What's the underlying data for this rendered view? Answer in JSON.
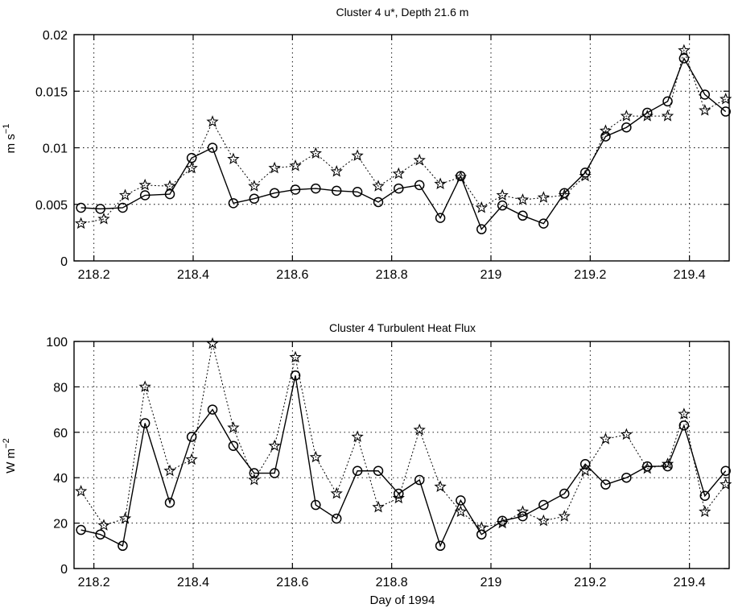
{
  "chart_data": [
    {
      "type": "line",
      "title": "Cluster 4 u*, Depth 21.6 m",
      "xlabel": "",
      "ylabel": "m s^-1",
      "xlim": [
        218.16,
        219.48
      ],
      "ylim": [
        0,
        0.02
      ],
      "xticks": [
        "218.2",
        "218.4",
        "218.6",
        "218.8",
        "219",
        "219.2",
        "219.4"
      ],
      "xtick_values": [
        218.2,
        218.4,
        218.6,
        218.8,
        219.0,
        219.2,
        219.4
      ],
      "yticks": [
        "0",
        "0.005",
        "0.01",
        "0.015",
        "0.02"
      ],
      "ytick_values": [
        0,
        0.005,
        0.01,
        0.015,
        0.02
      ],
      "grid": true,
      "series": [
        {
          "marker": "circle",
          "line_style": "solid",
          "x": [
            218.174,
            218.213,
            218.258,
            218.303,
            218.353,
            218.397,
            218.439,
            218.481,
            218.523,
            218.564,
            218.606,
            218.647,
            218.689,
            218.731,
            218.773,
            218.814,
            218.856,
            218.898,
            218.939,
            218.981,
            219.023,
            219.064,
            219.106,
            219.148,
            219.19,
            219.231,
            219.273,
            219.315,
            219.356,
            219.389,
            219.431,
            219.473
          ],
          "values": [
            0.0047,
            0.0046,
            0.0047,
            0.0058,
            0.0059,
            0.0091,
            0.01,
            0.0051,
            0.0055,
            0.006,
            0.0063,
            0.0064,
            0.0062,
            0.0061,
            0.0052,
            0.0064,
            0.0067,
            0.0038,
            0.0075,
            0.0028,
            0.0049,
            0.004,
            0.0033,
            0.006,
            0.0078,
            0.011,
            0.0118,
            0.0131,
            0.0141,
            0.0179,
            0.0147,
            0.0132
          ]
        },
        {
          "marker": "star",
          "line_style": "dotted",
          "x": [
            218.174,
            218.22,
            218.263,
            218.303,
            218.353,
            218.397,
            218.439,
            218.481,
            218.523,
            218.564,
            218.606,
            218.647,
            218.689,
            218.731,
            218.773,
            218.814,
            218.856,
            218.898,
            218.939,
            218.981,
            219.023,
            219.064,
            219.106,
            219.148,
            219.19,
            219.231,
            219.273,
            219.315,
            219.356,
            219.389,
            219.431,
            219.473
          ],
          "values": [
            0.0033,
            0.0037,
            0.0058,
            0.0067,
            0.0066,
            0.0082,
            0.0123,
            0.009,
            0.0066,
            0.0082,
            0.0084,
            0.0095,
            0.0079,
            0.0093,
            0.0066,
            0.0077,
            0.0089,
            0.0068,
            0.0074,
            0.0047,
            0.0058,
            0.0054,
            0.0056,
            0.0058,
            0.0075,
            0.0115,
            0.0128,
            0.0128,
            0.0128,
            0.0186,
            0.0133,
            0.0143
          ]
        }
      ]
    },
    {
      "type": "line",
      "title": "Cluster 4 Turbulent Heat Flux",
      "xlabel": "Day of 1994",
      "ylabel": "W m^-2",
      "xlim": [
        218.16,
        219.48
      ],
      "ylim": [
        0,
        100
      ],
      "xticks": [
        "218.2",
        "218.4",
        "218.6",
        "218.8",
        "219",
        "219.2",
        "219.4"
      ],
      "xtick_values": [
        218.2,
        218.4,
        218.6,
        218.8,
        219.0,
        219.2,
        219.4
      ],
      "yticks": [
        "0",
        "20",
        "40",
        "60",
        "80",
        "100"
      ],
      "ytick_values": [
        0,
        20,
        40,
        60,
        80,
        100
      ],
      "grid": true,
      "series": [
        {
          "marker": "circle",
          "line_style": "solid",
          "x": [
            218.174,
            218.213,
            218.258,
            218.303,
            218.353,
            218.397,
            218.439,
            218.481,
            218.523,
            218.564,
            218.606,
            218.647,
            218.689,
            218.731,
            218.773,
            218.814,
            218.856,
            218.898,
            218.939,
            218.981,
            219.023,
            219.064,
            219.106,
            219.148,
            219.19,
            219.231,
            219.273,
            219.315,
            219.356,
            219.389,
            219.431,
            219.473
          ],
          "values": [
            17,
            15,
            10,
            64,
            29,
            58,
            70,
            54,
            42,
            42,
            85,
            28,
            22,
            43,
            43,
            33,
            39,
            10,
            30,
            15,
            21,
            23,
            28,
            33,
            46,
            37,
            40,
            45,
            45,
            63,
            32,
            43
          ]
        },
        {
          "marker": "star",
          "line_style": "dotted",
          "x": [
            218.174,
            218.22,
            218.263,
            218.303,
            218.353,
            218.397,
            218.439,
            218.481,
            218.523,
            218.564,
            218.606,
            218.647,
            218.689,
            218.731,
            218.773,
            218.814,
            218.856,
            218.898,
            218.939,
            218.981,
            219.023,
            219.064,
            219.106,
            219.148,
            219.19,
            219.231,
            219.273,
            219.315,
            219.356,
            219.389,
            219.431,
            219.473
          ],
          "values": [
            34,
            19,
            22,
            80,
            43,
            48,
            99,
            62,
            39,
            54,
            93,
            49,
            33,
            58,
            27,
            31,
            61,
            36,
            25,
            18,
            20,
            25,
            21,
            23,
            43,
            57,
            59,
            44,
            46,
            68,
            25,
            37
          ]
        }
      ]
    }
  ]
}
